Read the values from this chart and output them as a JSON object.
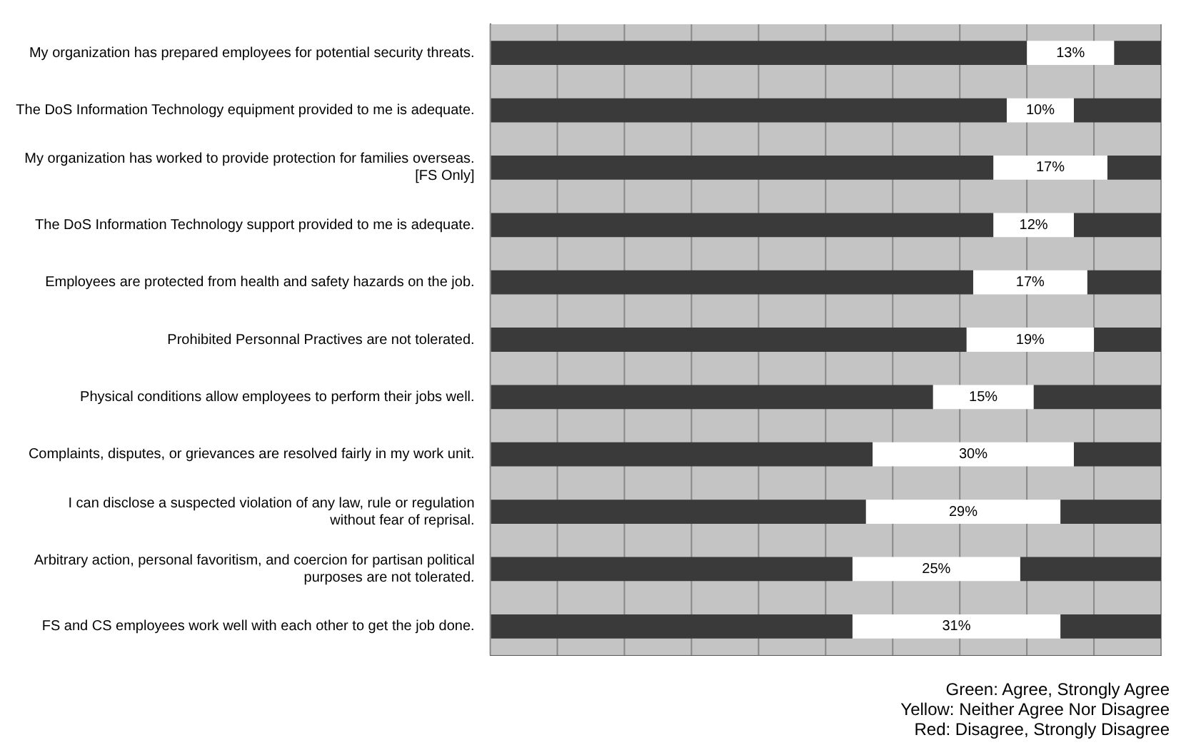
{
  "chart_data": {
    "type": "bar",
    "orientation": "horizontal",
    "stacked": true,
    "categories": [
      "My organization has prepared employees for potential security threats.",
      "The DoS Information Technology equipment provided to me is adequate.",
      "My organization has worked to provide protection for families overseas. [FS Only]",
      "The DoS Information Technology support provided to me is adequate.",
      "Employees are protected from health and safety hazards on the job.",
      "Prohibited Personnal Practives are not tolerated.",
      "Physical conditions allow employees to perform their jobs well.",
      "Complaints, disputes, or grievances are resolved fairly in my work unit.",
      "I can disclose a suspected violation of any law, rule or regulation without fear of reprisal.",
      "Arbitrary action, personal favoritism, and coercion for partisan political purposes are not tolerated.",
      "FS and CS employees work well with each other to get the job done."
    ],
    "series": [
      {
        "color": "#3a3a3a",
        "values": [
          80,
          77,
          75,
          75,
          72,
          71,
          66,
          57,
          56,
          54,
          54
        ]
      },
      {
        "color": "#ffffff",
        "values": [
          13,
          10,
          17,
          12,
          17,
          19,
          15,
          30,
          29,
          25,
          31
        ],
        "value_labels": [
          "13%",
          "10%",
          "17%",
          "12%",
          "17%",
          "19%",
          "15%",
          "30%",
          "29%",
          "25%",
          "31%"
        ]
      },
      {
        "color": "#3a3a3a",
        "values": [
          7,
          13,
          8,
          13,
          11,
          10,
          19,
          13,
          15,
          21,
          15
        ]
      }
    ],
    "xlim": [
      0,
      100
    ],
    "xticks": [
      {
        "value": 0,
        "label": null
      },
      {
        "value": 10,
        "label": null
      },
      {
        "value": 20,
        "label": null
      },
      {
        "value": 30,
        "label": null
      },
      {
        "value": 40,
        "label": null
      },
      {
        "value": 50,
        "label": null
      },
      {
        "value": 60,
        "label": null
      },
      {
        "value": 70,
        "label": null
      },
      {
        "value": 80,
        "label": null
      },
      {
        "value": 90,
        "label": null
      },
      {
        "value": 100,
        "label": null
      }
    ],
    "tick_labels": "y",
    "grid": "x",
    "legend": false,
    "annotations": [
      "Green: Agree, Strongly Agree",
      "Yellow: Neither Agree Nor Disagree",
      "Red: Disagree, Strongly Disagree"
    ]
  }
}
